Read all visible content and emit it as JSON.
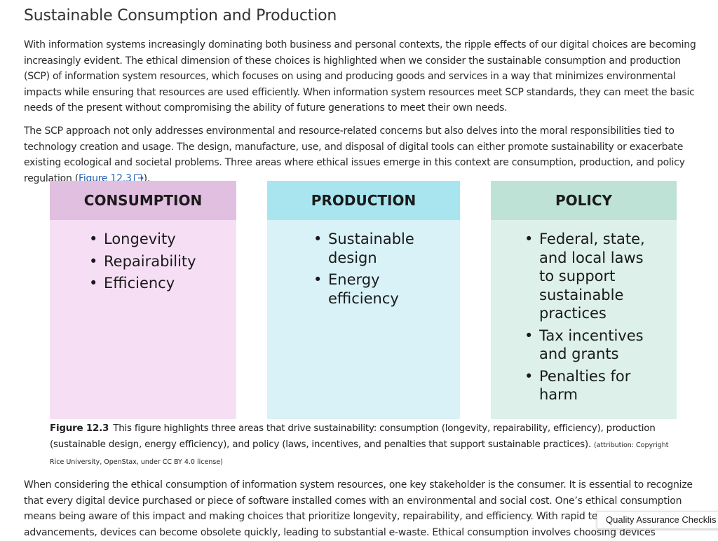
{
  "header": {
    "title": "Sustainable Consumption and Production"
  },
  "paragraphs": [
    {
      "text": "With information systems increasingly dominating both business and personal contexts, the ripple effects of our digital choices are becoming increasingly evident. The ethical dimension of these choices is highlighted when we consider the sustainable consumption and production (SCP) of information system resources, which focuses on using and producing goods and services in a way that minimizes environmental impacts while ensuring that resources are used efficiently. When information system resources meet SCP standards, they can meet the basic needs of the present without compromising the ability of future generations to meet their own needs."
    },
    {
      "text": "The SCP approach not only addresses environmental and resource-related concerns but also delves into the moral responsibilities tied to technology creation and usage. The design, manufacture, use, and disposal of digital tools can either promote sustainability or exacerbate existing ecological and societal problems. Three areas where ethical issues emerge in this context are consumption, production, and policy regulation (",
      "link": "Figure 12.3",
      "after": ")."
    },
    {
      "text": "When considering the ethical consumption of information system resources, one key stakeholder is the consumer. It is essential to recognize that every digital device purchased or piece of software installed comes with an environmental and social cost. One’s ethical consumption means being aware of this impact and making choices that prioritize longevity, repairability, and efficiency. With rapid technological advancements, devices can become obsolete quickly, leading to substantial e-waste. Ethical consumption involves choosing devices designed for longer life spans and ensuring"
    }
  ],
  "figure": {
    "columns": [
      {
        "title": "CONSUMPTION",
        "items": [
          "Longevity",
          "Repairability",
          "Efficiency"
        ]
      },
      {
        "title": "PRODUCTION",
        "items": [
          "Sustainable design",
          "Energy efficiency"
        ]
      },
      {
        "title": "POLICY",
        "items": [
          "Federal, state, and local laws to support sustainable practices",
          "Tax incentives and grants",
          "Penalties for harm"
        ]
      }
    ],
    "caption": {
      "label": "Figure 12.3",
      "text": "This figure highlights three areas that drive sustainability: consumption (longevity, repairability, efficiency), production (sustainable design, energy efficiency), and policy (laws, incentives, and penalties that support sustainable practices).",
      "attribution": "(attribution: Copyright Rice University, OpenStax, under CC BY 4.0 license)"
    }
  },
  "tooltip": {
    "text": "Quality Assurance Checklis"
  }
}
